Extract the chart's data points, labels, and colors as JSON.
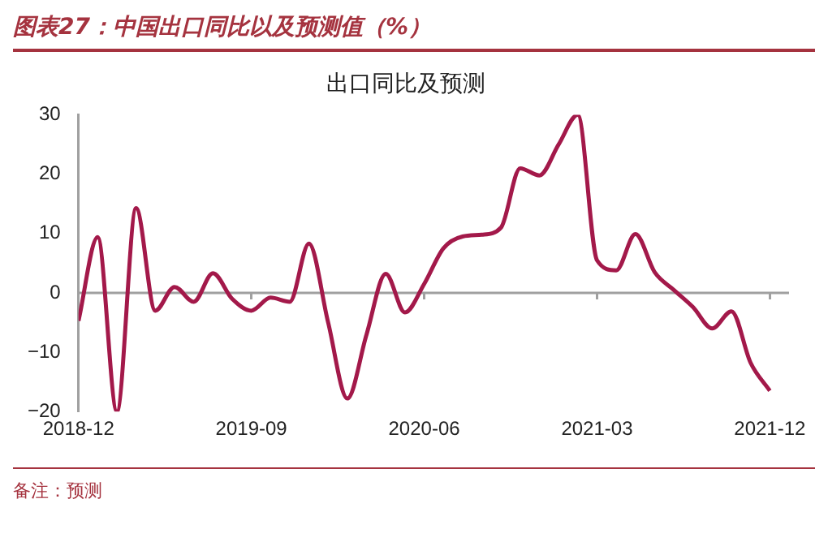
{
  "chart_data": {
    "type": "line",
    "title": "图表27：中国出口同比以及预测值（%）",
    "subtitle": "出口同比及预测",
    "x": [
      "2018-12",
      "2019-01",
      "2019-02",
      "2019-03",
      "2019-04",
      "2019-05",
      "2019-06",
      "2019-07",
      "2019-08",
      "2019-09",
      "2019-10",
      "2019-11",
      "2019-12",
      "2020-01",
      "2020-02",
      "2020-03",
      "2020-04",
      "2020-05",
      "2020-06",
      "2020-07",
      "2020-08",
      "2020-09",
      "2020-10",
      "2020-11",
      "2020-12",
      "2021-01",
      "2021-02",
      "2021-03",
      "2021-04",
      "2021-05",
      "2021-06",
      "2021-07",
      "2021-08",
      "2021-09",
      "2021-10",
      "2021-11",
      "2021-12"
    ],
    "series": [
      {
        "color": "#a3194a",
        "values": [
          -4.7,
          9.4,
          -20,
          14.3,
          -3,
          1,
          -1.5,
          3.3,
          -1,
          -3,
          -0.8,
          -1.5,
          8.3,
          -5,
          -17.8,
          -7,
          3.2,
          -3.3,
          1.5,
          7.5,
          9.5,
          9.8,
          11,
          21,
          19.8,
          25,
          30,
          5.5,
          3.8,
          9.9,
          3.5,
          0.5,
          -2.4,
          -6,
          -3.1,
          -11.8,
          -16.5
        ]
      }
    ],
    "xlim": [
      "2018-12",
      "2022-01"
    ],
    "xticks": [
      "2018-12",
      "2019-09",
      "2020-06",
      "2021-03",
      "2021-12"
    ],
    "ylim": [
      -20,
      30
    ],
    "yticks": [
      -20,
      -10,
      0,
      10,
      20,
      30
    ],
    "grid": false,
    "legend": false,
    "marker": "none",
    "line_style": "solid",
    "ref_lines": [
      {
        "axis": "y",
        "value": 0,
        "color": "#a0a0a0",
        "line_style": "solid"
      }
    ],
    "annotations": [
      "备注：预测"
    ]
  }
}
